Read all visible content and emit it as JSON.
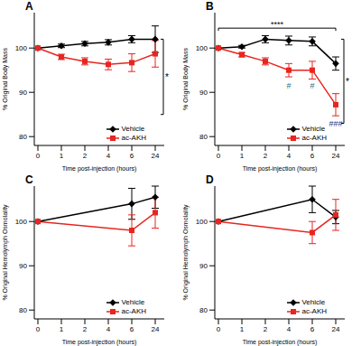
{
  "chart_data": [
    {
      "type": "line",
      "panel": "A",
      "y_label": "% Original Body Mass",
      "x_label": "Time post-injection (hours)",
      "categories": [
        "0",
        "1",
        "2",
        "4",
        "6",
        "24"
      ],
      "ylim": [
        78,
        108
      ],
      "yticks": [
        80,
        90,
        100
      ],
      "legend": "lower right",
      "series": [
        {
          "name": "Vehicle",
          "color": "#000000",
          "marker": "diamond",
          "values": [
            100,
            100.5,
            101,
            101.3,
            102,
            102
          ],
          "errors": [
            0,
            0.4,
            0.5,
            0.6,
            0.8,
            3
          ]
        },
        {
          "name": "ac-AKH",
          "color": "#e8251f",
          "marker": "square",
          "values": [
            100,
            98,
            97,
            96.3,
            96.7,
            98.7
          ],
          "errors": [
            0,
            0.6,
            0.8,
            1.2,
            2,
            3
          ]
        }
      ],
      "annotations": [
        {
          "text": "*",
          "x": "24",
          "y_range": [
            85,
            102
          ]
        }
      ]
    },
    {
      "type": "line",
      "panel": "B",
      "y_label": "% Original Body Mass",
      "x_label": "Time post-injection (hours)",
      "categories": [
        "0",
        "1",
        "2",
        "4",
        "6",
        "24"
      ],
      "ylim": [
        78,
        108
      ],
      "yticks": [
        80,
        90,
        100
      ],
      "legend": "lower right",
      "series": [
        {
          "name": "Vehicle",
          "color": "#000000",
          "marker": "diamond",
          "values": [
            100,
            100.3,
            102,
            101.7,
            101.5,
            96.5
          ],
          "errors": [
            0,
            0.3,
            0.8,
            1,
            1,
            1.5
          ]
        },
        {
          "name": "ac-AKH",
          "color": "#e8251f",
          "marker": "square",
          "values": [
            100,
            98.5,
            97,
            95,
            95,
            87.2
          ],
          "errors": [
            0,
            0.5,
            0.8,
            1.5,
            2,
            2.5
          ]
        }
      ],
      "annotations": [
        {
          "text": "****",
          "x_range": [
            "0",
            "24"
          ],
          "y": 104.5
        },
        {
          "text": "#",
          "x": "4",
          "y": 91.5,
          "color": "#1f6f7a"
        },
        {
          "text": "#",
          "x": "6",
          "y": 91.5,
          "color": "#1f6f7a"
        },
        {
          "text": "###",
          "x": "24",
          "y": 83,
          "color": "#1a3a8a"
        },
        {
          "text": "*",
          "x": "24",
          "y_range": [
            83,
            102
          ]
        }
      ]
    },
    {
      "type": "line",
      "panel": "C",
      "y_label": "% Original Hemolymph Osmolality",
      "x_label": "Time post-injection (hours)",
      "categories": [
        "0",
        "1",
        "2",
        "4",
        "6",
        "24"
      ],
      "ylim": [
        78,
        108
      ],
      "yticks": [
        80,
        90,
        100
      ],
      "legend": "lower right",
      "series": [
        {
          "name": "Vehicle",
          "color": "#000000",
          "marker": "diamond",
          "values": [
            100,
            null,
            null,
            null,
            104,
            105.5
          ],
          "errors": [
            0,
            null,
            null,
            null,
            3.5,
            2.5
          ]
        },
        {
          "name": "ac-AKH",
          "color": "#e8251f",
          "marker": "square",
          "values": [
            100,
            null,
            null,
            null,
            98,
            102
          ],
          "errors": [
            0,
            null,
            null,
            null,
            3.5,
            3.5
          ]
        }
      ],
      "annotations": []
    },
    {
      "type": "line",
      "panel": "D",
      "y_label": "% Original Hemolymph Osmolality",
      "x_label": "Time post-injection (hours)",
      "categories": [
        "0",
        "1",
        "2",
        "4",
        "6",
        "24"
      ],
      "ylim": [
        78,
        108
      ],
      "yticks": [
        80,
        90,
        100
      ],
      "legend": "lower right",
      "series": [
        {
          "name": "Vehicle",
          "color": "#000000",
          "marker": "diamond",
          "values": [
            100,
            null,
            null,
            null,
            105,
            101
          ],
          "errors": [
            0,
            null,
            null,
            null,
            3,
            1.5
          ]
        },
        {
          "name": "ac-AKH",
          "color": "#e8251f",
          "marker": "square",
          "values": [
            100,
            null,
            null,
            null,
            97.5,
            101.5
          ],
          "errors": [
            0,
            null,
            null,
            null,
            2.5,
            3.5
          ]
        }
      ],
      "annotations": []
    }
  ]
}
